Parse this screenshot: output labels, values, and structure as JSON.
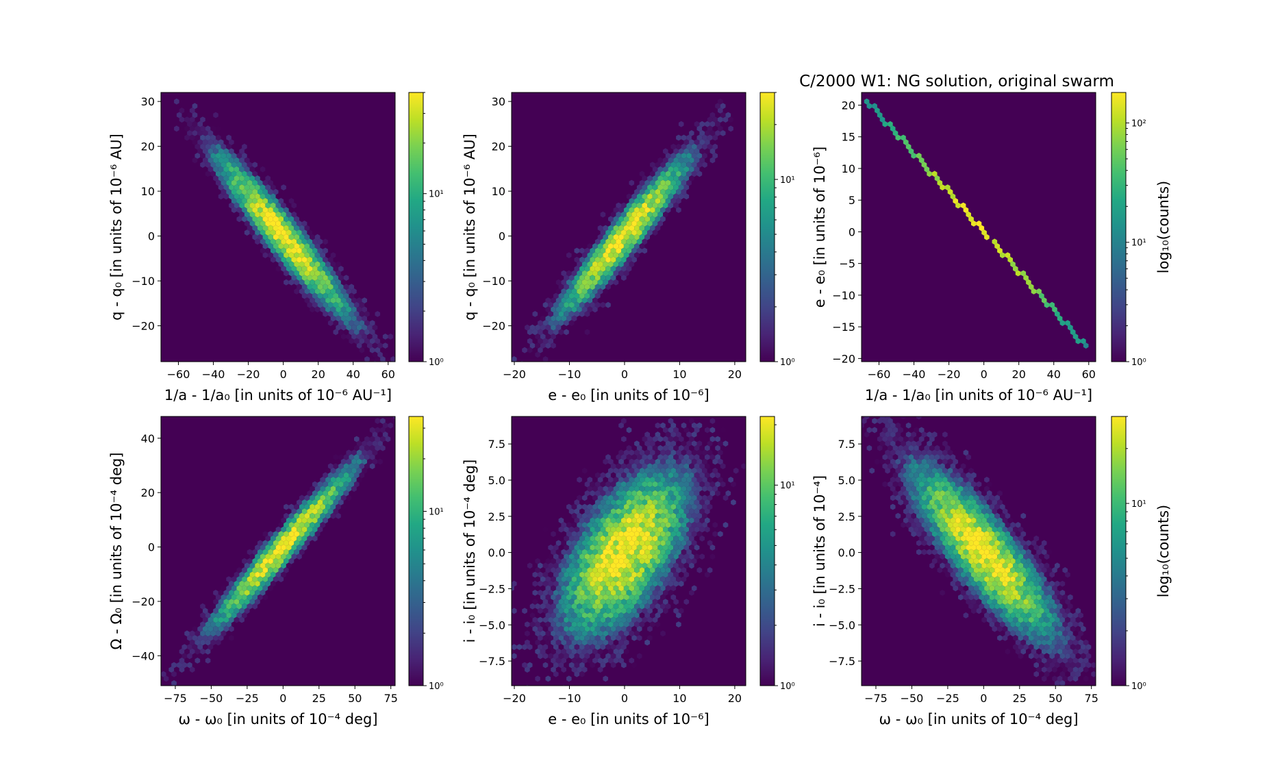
{
  "figure": {
    "title": "C/2000 W1:  NG solution, original swarm",
    "colormap": "viridis",
    "background_color": "#440154"
  },
  "chart_data": [
    {
      "type": "heatmap",
      "kind": "hexbin",
      "xlabel": "1/a - 1/a₀ [in units of 10⁻⁶ AU⁻¹]",
      "ylabel": "q - q₀ [in units of 10⁻⁶ AU]",
      "xlim": [
        -70,
        64
      ],
      "ylim": [
        -28,
        32
      ],
      "xticks": [
        -60,
        -40,
        -20,
        0,
        20,
        40,
        60
      ],
      "xtick_labels": [
        "−60",
        "−40",
        "−20",
        "0",
        "20",
        "40",
        "60"
      ],
      "yticks": [
        -20,
        -10,
        0,
        10,
        20,
        30
      ],
      "ytick_labels": [
        "−20",
        "−10",
        "0",
        "10",
        "20",
        "30"
      ],
      "distribution": {
        "center": [
          0,
          0
        ],
        "sd": [
          19,
          9
        ],
        "correlation": -0.95,
        "peak_count": 40
      },
      "colorbar": {
        "scale": "log",
        "range": [
          1,
          40
        ],
        "ticks": [
          1,
          10
        ],
        "tick_labels": [
          "10⁰",
          "10¹"
        ],
        "label": ""
      }
    },
    {
      "type": "heatmap",
      "kind": "hexbin",
      "xlabel": "e - e₀ [in units of 10⁻⁶]",
      "ylabel": "q - q₀ [in units of 10⁻⁶ AU]",
      "xlim": [
        -20.5,
        22
      ],
      "ylim": [
        -28,
        32
      ],
      "xticks": [
        -20,
        -10,
        0,
        10,
        20
      ],
      "xtick_labels": [
        "−20",
        "−10",
        "0",
        "10",
        "20"
      ],
      "yticks": [
        -20,
        -10,
        0,
        10,
        20,
        30
      ],
      "ytick_labels": [
        "−20",
        "−10",
        "0",
        "10",
        "20",
        "30"
      ],
      "distribution": {
        "center": [
          0,
          0
        ],
        "sd": [
          6,
          9
        ],
        "correlation": 0.95,
        "peak_count": 30
      },
      "colorbar": {
        "scale": "log",
        "range": [
          1,
          30
        ],
        "ticks": [
          1,
          10
        ],
        "tick_labels": [
          "10⁰",
          "10¹"
        ],
        "label": ""
      }
    },
    {
      "type": "heatmap",
      "kind": "hexbin",
      "xlabel": "1/a - 1/a₀ [in units of 10⁻⁶ AU⁻¹]",
      "ylabel": "e - e₀ [in units of 10⁻⁶]",
      "xlim": [
        -70,
        64
      ],
      "ylim": [
        -20.5,
        22
      ],
      "xticks": [
        -60,
        -40,
        -20,
        0,
        20,
        40,
        60
      ],
      "xtick_labels": [
        "−60",
        "−40",
        "−20",
        "0",
        "20",
        "40",
        "60"
      ],
      "yticks": [
        -20,
        -15,
        -10,
        -5,
        0,
        5,
        10,
        15,
        20
      ],
      "ytick_labels": [
        "−20",
        "−15",
        "−10",
        "−5",
        "0",
        "5",
        "10",
        "15",
        "20"
      ],
      "distribution": {
        "line_from": [
          -66,
          20.5
        ],
        "line_to": [
          58,
          -18
        ],
        "peak_count": 180
      },
      "colorbar": {
        "scale": "log",
        "range": [
          1,
          180
        ],
        "ticks": [
          1,
          10,
          100
        ],
        "tick_labels": [
          "10⁰",
          "10¹",
          "10²"
        ],
        "label": "log₁₀(counts)"
      }
    },
    {
      "type": "heatmap",
      "kind": "hexbin",
      "xlabel": "ω - ω₀ [in units of 10⁻⁴ deg]",
      "ylabel": "Ω - Ω₀ [in units of 10⁻⁴ deg]",
      "xlim": [
        -85,
        78
      ],
      "ylim": [
        -51,
        48
      ],
      "xticks": [
        -75,
        -50,
        -25,
        0,
        25,
        50,
        75
      ],
      "xtick_labels": [
        "−75",
        "−50",
        "−25",
        "0",
        "25",
        "50",
        "75"
      ],
      "yticks": [
        -40,
        -20,
        0,
        20,
        40
      ],
      "ytick_labels": [
        "−40",
        "−20",
        "0",
        "20",
        "40"
      ],
      "distribution": {
        "center": [
          0,
          0
        ],
        "sd": [
          25,
          15
        ],
        "correlation": 0.97,
        "peak_count": 35
      },
      "colorbar": {
        "scale": "log",
        "range": [
          1,
          35
        ],
        "ticks": [
          1,
          10
        ],
        "tick_labels": [
          "10⁰",
          "10¹"
        ],
        "label": ""
      }
    },
    {
      "type": "heatmap",
      "kind": "hexbin",
      "xlabel": "e - e₀ [in units of 10⁻⁶]",
      "ylabel": "i - i₀ [in units of 10⁻⁴ deg]",
      "xlim": [
        -20.5,
        22
      ],
      "ylim": [
        -9.2,
        9.4
      ],
      "xticks": [
        -20,
        -10,
        0,
        10,
        20
      ],
      "xtick_labels": [
        "−20",
        "−10",
        "0",
        "10",
        "20"
      ],
      "yticks": [
        -7.5,
        -5,
        -2.5,
        0,
        2.5,
        5,
        7.5
      ],
      "ytick_labels": [
        "−7.5",
        "−5.0",
        "−2.5",
        "0.0",
        "2.5",
        "5.0",
        "7.5"
      ],
      "distribution": {
        "center": [
          0,
          0
        ],
        "sd": [
          6,
          3
        ],
        "correlation": 0.6,
        "peak_count": 22
      },
      "colorbar": {
        "scale": "log",
        "range": [
          1,
          22
        ],
        "ticks": [
          1,
          10
        ],
        "tick_labels": [
          "10⁰",
          "10¹"
        ],
        "label": ""
      }
    },
    {
      "type": "heatmap",
      "kind": "hexbin",
      "xlabel": "ω - ω₀ [in units of 10⁻⁴ deg]",
      "ylabel": "i - i₀ [in units of 10⁻⁴]",
      "xlim": [
        -85,
        78
      ],
      "ylim": [
        -9.2,
        9.4
      ],
      "xticks": [
        -75,
        -50,
        -25,
        0,
        25,
        50,
        75
      ],
      "xtick_labels": [
        "−75",
        "−50",
        "−25",
        "0",
        "25",
        "50",
        "75"
      ],
      "yticks": [
        -7.5,
        -5,
        -2.5,
        0,
        2.5,
        5,
        7.5
      ],
      "ytick_labels": [
        "−7.5",
        "−5.0",
        "−2.5",
        "0.0",
        "2.5",
        "5.0",
        "7.5"
      ],
      "distribution": {
        "center": [
          0,
          0
        ],
        "sd": [
          25,
          3
        ],
        "correlation": -0.85,
        "peak_count": 30
      },
      "colorbar": {
        "scale": "log",
        "range": [
          1,
          30
        ],
        "ticks": [
          1,
          10
        ],
        "tick_labels": [
          "10⁰",
          "10¹"
        ],
        "label": "log₁₀(counts)"
      }
    }
  ]
}
